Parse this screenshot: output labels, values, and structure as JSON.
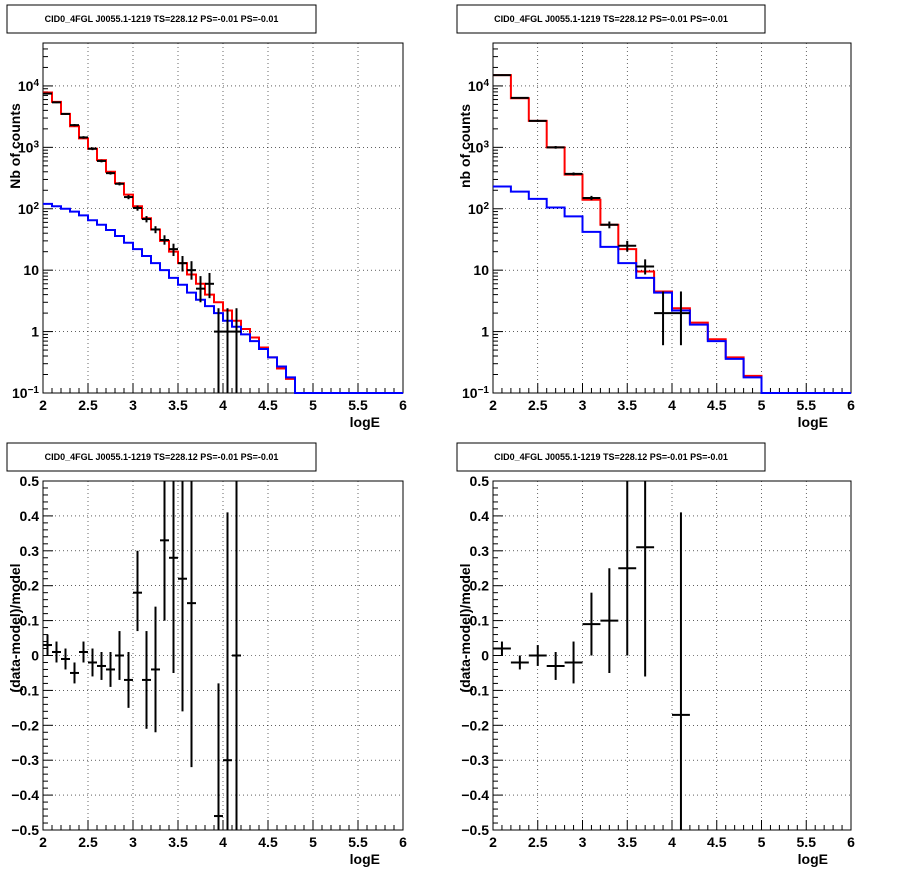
{
  "chart_data": [
    {
      "type": "line",
      "panel": "spectrum-left",
      "title": "CID0_4FGL J0055.1-1219 TS=228.12 PS=-0.01 PS=-0.01",
      "xlabel": "logE",
      "ylabel": "Nb of counts",
      "xlim": [
        2,
        6
      ],
      "ylim": [
        0.1,
        50000
      ],
      "log_y": true,
      "grid": true,
      "x_ticks": [
        "2",
        "2.5",
        "3",
        "3.5",
        "4",
        "4.5",
        "5",
        "5.5",
        "6"
      ],
      "y_ticks": [
        "10^-1",
        "1",
        "10",
        "10^2",
        "10^3",
        "10^4"
      ],
      "bin_edges": [
        2.0,
        2.1,
        2.2,
        2.3,
        2.4,
        2.5,
        2.6,
        2.7,
        2.8,
        2.9,
        3.0,
        3.1,
        3.2,
        3.3,
        3.4,
        3.5,
        3.6,
        3.7,
        3.8,
        3.9,
        4.0,
        4.1,
        4.2,
        4.3,
        4.4,
        4.5,
        4.6,
        4.7,
        4.8,
        4.9,
        5.0,
        5.1,
        5.2,
        5.3,
        5.4,
        5.5,
        5.6,
        5.7,
        5.8,
        5.9,
        6.0
      ],
      "series": [
        {
          "color": "#ff0000",
          "values": [
            7800,
            5500,
            3500,
            2200,
            1400,
            950,
            620,
            400,
            260,
            170,
            110,
            70,
            46,
            30,
            20,
            13,
            8.5,
            6,
            4,
            3,
            2.2,
            1.5,
            1.1,
            0.8,
            0.55,
            0.38,
            0.25,
            0.17,
            0.1,
            0.1,
            0.1,
            0.1,
            0.1,
            0.1,
            0.1,
            0.1,
            0.1,
            0.1,
            0.1,
            0.1
          ]
        },
        {
          "color": "#0000ff",
          "values": [
            120,
            110,
            100,
            90,
            78,
            65,
            55,
            45,
            36,
            28,
            22,
            17,
            13,
            10,
            7.5,
            5.8,
            4.3,
            3.3,
            2.6,
            2.0,
            1.5,
            1.2,
            0.9,
            0.7,
            0.52,
            0.38,
            0.27,
            0.18,
            0.1,
            0.1,
            0.1,
            0.1,
            0.1,
            0.1,
            0.1,
            0.1,
            0.1,
            0.1,
            0.1,
            0.1
          ]
        }
      ],
      "points": [
        {
          "x": 2.05,
          "y": 7500,
          "ylo": 7300,
          "yhi": 7700
        },
        {
          "x": 2.15,
          "y": 5400,
          "ylo": 5250,
          "yhi": 5550
        },
        {
          "x": 2.25,
          "y": 3500,
          "ylo": 3380,
          "yhi": 3620
        },
        {
          "x": 2.35,
          "y": 2300,
          "ylo": 2200,
          "yhi": 2400
        },
        {
          "x": 2.45,
          "y": 1450,
          "ylo": 1380,
          "yhi": 1520
        },
        {
          "x": 2.55,
          "y": 950,
          "ylo": 900,
          "yhi": 1000
        },
        {
          "x": 2.65,
          "y": 600,
          "ylo": 570,
          "yhi": 630
        },
        {
          "x": 2.75,
          "y": 380,
          "ylo": 360,
          "yhi": 400
        },
        {
          "x": 2.85,
          "y": 255,
          "ylo": 240,
          "yhi": 270
        },
        {
          "x": 2.95,
          "y": 155,
          "ylo": 143,
          "yhi": 167
        },
        {
          "x": 3.05,
          "y": 103,
          "ylo": 93,
          "yhi": 113
        },
        {
          "x": 3.15,
          "y": 68,
          "ylo": 60,
          "yhi": 76
        },
        {
          "x": 3.25,
          "y": 46,
          "ylo": 40,
          "yhi": 52
        },
        {
          "x": 3.35,
          "y": 31,
          "ylo": 26,
          "yhi": 37
        },
        {
          "x": 3.45,
          "y": 22,
          "ylo": 17,
          "yhi": 27
        },
        {
          "x": 3.55,
          "y": 13,
          "ylo": 9.5,
          "yhi": 17
        },
        {
          "x": 3.65,
          "y": 10,
          "ylo": 7,
          "yhi": 14
        },
        {
          "x": 3.75,
          "y": 5,
          "ylo": 3,
          "yhi": 8
        },
        {
          "x": 3.85,
          "y": 6,
          "ylo": 3.5,
          "yhi": 9
        },
        {
          "x": 3.95,
          "y": 1,
          "ylo": 0.1,
          "yhi": 2.4
        },
        {
          "x": 4.05,
          "y": 1,
          "ylo": 0.1,
          "yhi": 2.4
        },
        {
          "x": 4.15,
          "y": 1,
          "ylo": 0.1,
          "yhi": 2.4
        }
      ]
    },
    {
      "type": "line",
      "panel": "spectrum-right",
      "title": "CID0_4FGL J0055.1-1219 TS=228.12 PS=-0.01 PS=-0.01",
      "xlabel": "logE",
      "ylabel": "nb of counts",
      "xlim": [
        2,
        6
      ],
      "ylim": [
        0.1,
        50000
      ],
      "log_y": true,
      "grid": true,
      "x_ticks": [
        "2",
        "2.5",
        "3",
        "3.5",
        "4",
        "4.5",
        "5",
        "5.5",
        "6"
      ],
      "y_ticks": [
        "10^-1",
        "1",
        "10",
        "10^2",
        "10^3",
        "10^4"
      ],
      "bin_edges": [
        2.0,
        2.2,
        2.4,
        2.6,
        2.8,
        3.0,
        3.2,
        3.4,
        3.6,
        3.8,
        4.0,
        4.2,
        4.4,
        4.6,
        4.8,
        5.0,
        5.2,
        5.4,
        5.6,
        5.8,
        6.0
      ],
      "series": [
        {
          "color": "#ff0000",
          "values": [
            15000,
            6300,
            2700,
            1000,
            360,
            140,
            55,
            22,
            9.5,
            4.5,
            2.4,
            1.4,
            0.75,
            0.38,
            0.19,
            0.1,
            0.1,
            0.1,
            0.1,
            0.1
          ]
        },
        {
          "color": "#0000ff",
          "values": [
            230,
            190,
            145,
            105,
            75,
            42,
            24,
            13,
            7.5,
            4.3,
            2.2,
            1.3,
            0.7,
            0.36,
            0.18,
            0.1,
            0.1,
            0.1,
            0.1,
            0.1
          ]
        }
      ],
      "points": [
        {
          "x": 2.1,
          "y": 15000,
          "ylo": 14600,
          "yhi": 15400
        },
        {
          "x": 2.3,
          "y": 6400,
          "ylo": 6200,
          "yhi": 6600
        },
        {
          "x": 2.5,
          "y": 2700,
          "ylo": 2600,
          "yhi": 2800
        },
        {
          "x": 2.7,
          "y": 1000,
          "ylo": 950,
          "yhi": 1050
        },
        {
          "x": 2.9,
          "y": 370,
          "ylo": 350,
          "yhi": 390
        },
        {
          "x": 3.1,
          "y": 150,
          "ylo": 138,
          "yhi": 162
        },
        {
          "x": 3.3,
          "y": 55,
          "ylo": 48,
          "yhi": 62
        },
        {
          "x": 3.5,
          "y": 25,
          "ylo": 20,
          "yhi": 30
        },
        {
          "x": 3.7,
          "y": 11.5,
          "ylo": 8.5,
          "yhi": 15
        },
        {
          "x": 3.9,
          "y": 2,
          "ylo": 0.6,
          "yhi": 4.5
        },
        {
          "x": 4.1,
          "y": 2,
          "ylo": 0.6,
          "yhi": 4.5
        }
      ]
    },
    {
      "type": "scatter",
      "panel": "residual-left",
      "title": "CID0_4FGL J0055.1-1219 TS=228.12 PS=-0.01 PS=-0.01",
      "xlabel": "logE",
      "ylabel": "(data-model)/model",
      "xlim": [
        2,
        6
      ],
      "ylim": [
        -0.5,
        0.5
      ],
      "grid": true,
      "x_ticks": [
        "2",
        "2.5",
        "3",
        "3.5",
        "4",
        "4.5",
        "5",
        "5.5",
        "6"
      ],
      "y_ticks": [
        "−0.5",
        "−0.4",
        "−0.3",
        "−0.2",
        "−0.1",
        "0",
        "0.1",
        "0.2",
        "0.3",
        "0.4",
        "0.5"
      ],
      "points": [
        {
          "x": 2.05,
          "y": 0.03,
          "ylo": 0.0,
          "yhi": 0.06
        },
        {
          "x": 2.15,
          "y": 0.01,
          "ylo": -0.02,
          "yhi": 0.04
        },
        {
          "x": 2.25,
          "y": -0.01,
          "ylo": -0.04,
          "yhi": 0.02
        },
        {
          "x": 2.35,
          "y": -0.05,
          "ylo": -0.08,
          "yhi": -0.02
        },
        {
          "x": 2.45,
          "y": 0.01,
          "ylo": -0.02,
          "yhi": 0.04
        },
        {
          "x": 2.55,
          "y": -0.02,
          "ylo": -0.06,
          "yhi": 0.02
        },
        {
          "x": 2.65,
          "y": -0.03,
          "ylo": -0.07,
          "yhi": 0.01
        },
        {
          "x": 2.75,
          "y": -0.04,
          "ylo": -0.09,
          "yhi": 0.01
        },
        {
          "x": 2.85,
          "y": 0.0,
          "ylo": -0.07,
          "yhi": 0.07
        },
        {
          "x": 2.95,
          "y": -0.07,
          "ylo": -0.15,
          "yhi": 0.01
        },
        {
          "x": 3.05,
          "y": 0.18,
          "ylo": 0.07,
          "yhi": 0.3
        },
        {
          "x": 3.15,
          "y": -0.07,
          "ylo": -0.21,
          "yhi": 0.07
        },
        {
          "x": 3.25,
          "y": -0.04,
          "ylo": -0.22,
          "yhi": 0.14
        },
        {
          "x": 3.35,
          "y": 0.33,
          "ylo": 0.1,
          "yhi": 0.5
        },
        {
          "x": 3.45,
          "y": 0.28,
          "ylo": -0.05,
          "yhi": 0.5
        },
        {
          "x": 3.55,
          "y": 0.22,
          "ylo": -0.16,
          "yhi": 0.5
        },
        {
          "x": 3.65,
          "y": 0.15,
          "ylo": -0.32,
          "yhi": 0.5
        },
        {
          "x": 3.95,
          "y": -0.46,
          "ylo": -0.5,
          "yhi": -0.08
        },
        {
          "x": 4.05,
          "y": -0.3,
          "ylo": -0.5,
          "yhi": 0.41
        },
        {
          "x": 4.15,
          "y": 0.0,
          "ylo": -0.5,
          "yhi": 0.5
        }
      ]
    },
    {
      "type": "scatter",
      "panel": "residual-right",
      "title": "CID0_4FGL J0055.1-1219 TS=228.12 PS=-0.01 PS=-0.01",
      "xlabel": "logE",
      "ylabel": "(data-model)/model",
      "xlim": [
        2,
        6
      ],
      "ylim": [
        -0.5,
        0.5
      ],
      "grid": true,
      "x_ticks": [
        "2",
        "2.5",
        "3",
        "3.5",
        "4",
        "4.5",
        "5",
        "5.5",
        "6"
      ],
      "y_ticks": [
        "−0.5",
        "−0.4",
        "−0.3",
        "−0.2",
        "−0.1",
        "0",
        "0.1",
        "0.2",
        "0.3",
        "0.4",
        "0.5"
      ],
      "points": [
        {
          "x": 2.1,
          "y": 0.02,
          "ylo": 0.0,
          "yhi": 0.04
        },
        {
          "x": 2.3,
          "y": -0.02,
          "ylo": -0.04,
          "yhi": 0.0
        },
        {
          "x": 2.5,
          "y": 0.0,
          "ylo": -0.03,
          "yhi": 0.03
        },
        {
          "x": 2.7,
          "y": -0.03,
          "ylo": -0.07,
          "yhi": 0.01
        },
        {
          "x": 2.9,
          "y": -0.02,
          "ylo": -0.08,
          "yhi": 0.04
        },
        {
          "x": 3.1,
          "y": 0.09,
          "ylo": 0.0,
          "yhi": 0.18
        },
        {
          "x": 3.3,
          "y": 0.1,
          "ylo": -0.05,
          "yhi": 0.25
        },
        {
          "x": 3.5,
          "y": 0.25,
          "ylo": 0.0,
          "yhi": 0.5
        },
        {
          "x": 3.7,
          "y": 0.31,
          "ylo": -0.06,
          "yhi": 0.5
        },
        {
          "x": 4.1,
          "y": -0.17,
          "ylo": -0.5,
          "yhi": 0.41
        }
      ]
    }
  ]
}
